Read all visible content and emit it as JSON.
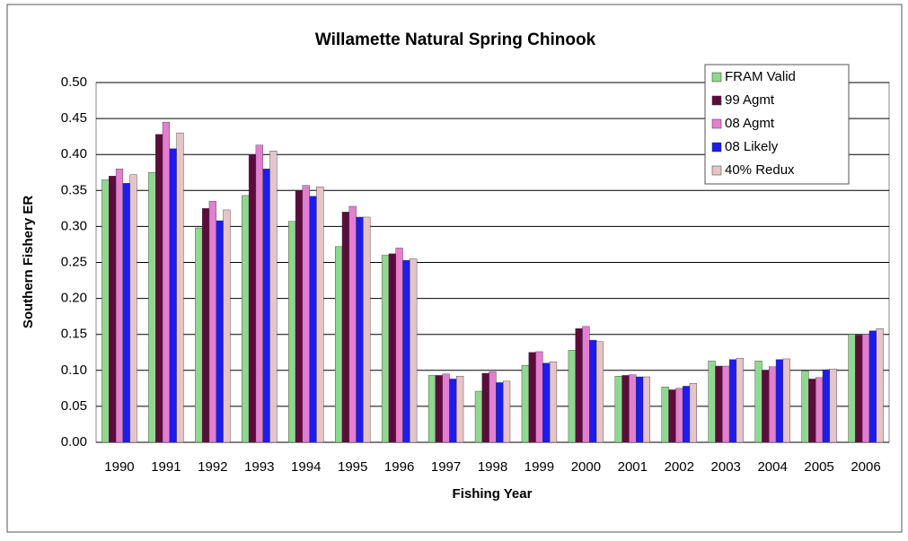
{
  "chart_data": {
    "type": "bar",
    "title": "Willamette Natural Spring Chinook",
    "xlabel": "Fishing Year",
    "ylabel": "Southern Fishery ER",
    "categories": [
      "1990",
      "1991",
      "1992",
      "1993",
      "1994",
      "1995",
      "1996",
      "1997",
      "1998",
      "1999",
      "2000",
      "2001",
      "2002",
      "2003",
      "2004",
      "2005",
      "2006"
    ],
    "series": [
      {
        "name": "FRAM Valid",
        "color": "#8fd88f",
        "values": [
          0.365,
          0.375,
          0.298,
          0.343,
          0.307,
          0.272,
          0.26,
          0.093,
          0.071,
          0.107,
          0.128,
          0.092,
          0.077,
          0.113,
          0.113,
          0.099,
          0.15
        ]
      },
      {
        "name": "99 Agmt",
        "color": "#5c0c3c",
        "values": [
          0.37,
          0.428,
          0.325,
          0.4,
          0.35,
          0.32,
          0.262,
          0.093,
          0.096,
          0.125,
          0.158,
          0.093,
          0.073,
          0.106,
          0.1,
          0.088,
          0.149
        ]
      },
      {
        "name": "08  Agmt",
        "color": "#e47ed2",
        "values": [
          0.38,
          0.445,
          0.335,
          0.413,
          0.357,
          0.328,
          0.27,
          0.095,
          0.098,
          0.126,
          0.161,
          0.094,
          0.075,
          0.106,
          0.105,
          0.09,
          0.15
        ]
      },
      {
        "name": "08 Likely",
        "color": "#1c1ced",
        "values": [
          0.36,
          0.408,
          0.308,
          0.38,
          0.342,
          0.313,
          0.253,
          0.088,
          0.083,
          0.11,
          0.142,
          0.091,
          0.078,
          0.115,
          0.115,
          0.101,
          0.155
        ]
      },
      {
        "name": "40% Redux",
        "color": "#e6c4c8",
        "values": [
          0.372,
          0.43,
          0.323,
          0.405,
          0.355,
          0.313,
          0.255,
          0.092,
          0.085,
          0.112,
          0.14,
          0.091,
          0.082,
          0.117,
          0.116,
          0.102,
          0.158
        ]
      }
    ],
    "ylim": [
      0,
      0.5
    ],
    "yticks": [
      {
        "value": 0,
        "label": "0.00"
      },
      0.05,
      {
        "value": 0.1,
        "label": "0.10"
      },
      0.15,
      {
        "value": 0.2,
        "label": "0.20"
      },
      0.25,
      {
        "value": 0.3,
        "label": "0.30"
      },
      0.35,
      {
        "value": 0.4,
        "label": "0.40"
      },
      0.45,
      {
        "value": 0.5,
        "label": "0.50"
      }
    ],
    "grid": true,
    "legend": "upper right"
  }
}
